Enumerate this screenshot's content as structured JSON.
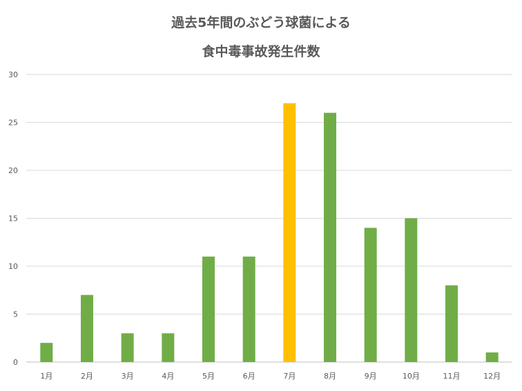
{
  "chart_data": {
    "type": "bar",
    "title_line1": "過去5年間のぶどう球菌による",
    "title_line2": "食中毒事故発生件数",
    "categories": [
      "1月",
      "2月",
      "3月",
      "4月",
      "5月",
      "6月",
      "7月",
      "8月",
      "9月",
      "10月",
      "11月",
      "12月"
    ],
    "values": [
      2,
      7,
      3,
      3,
      11,
      11,
      27,
      26,
      14,
      15,
      8,
      1
    ],
    "highlight_index": 6,
    "yticks": [
      0,
      5,
      10,
      15,
      20,
      25,
      30
    ],
    "ylim": [
      0,
      30
    ],
    "grid": true,
    "legend": "none"
  },
  "colors": {
    "bar": "#70ad47",
    "highlight": "#ffc000",
    "grid": "#d9d9d9",
    "axis": "#bfbfbf",
    "text": "#595959"
  }
}
